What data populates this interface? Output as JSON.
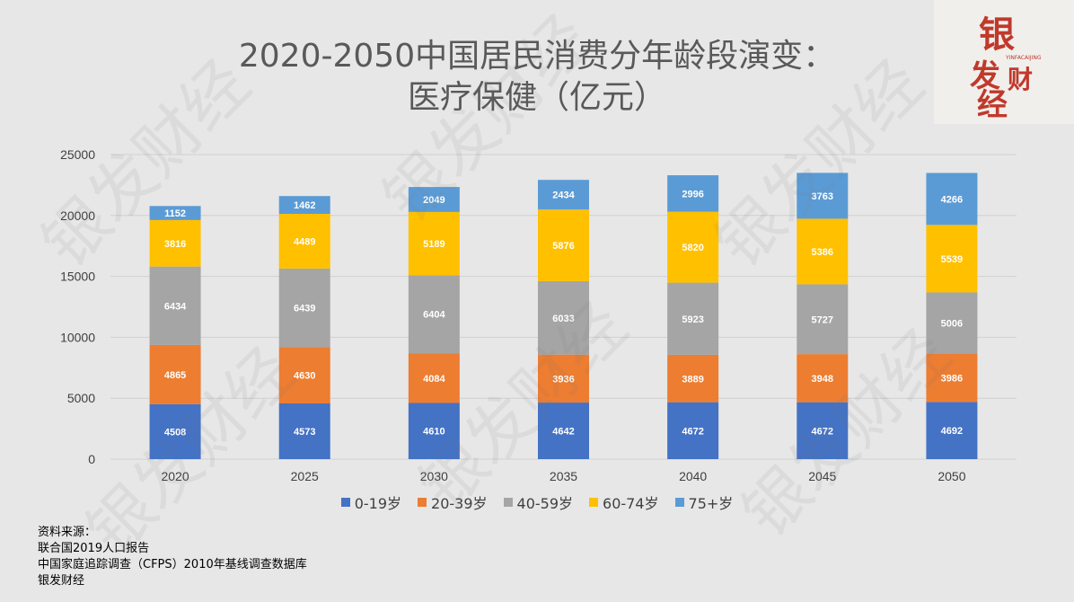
{
  "title_lines": [
    "2020-2050中国居民消费分年龄段演变：",
    "医疗保健（亿元）"
  ],
  "logo": {
    "chars": [
      "银",
      "发",
      "财",
      "经"
    ],
    "subtext": "YINFACAIJING",
    "color": "#c0392b"
  },
  "watermark_text": "银发财经",
  "source": {
    "heading": "资料来源：",
    "lines": [
      "联合国2019人口报告",
      "中国家庭追踪调查（CFPS）2010年基线调查数据库",
      "银发财经"
    ]
  },
  "chart_data": {
    "type": "bar",
    "stacked": true,
    "title": "2020-2050中国居民消费分年龄段演变：医疗保健（亿元）",
    "categories": [
      "2020",
      "2025",
      "2030",
      "2035",
      "2040",
      "2045",
      "2050"
    ],
    "series": [
      {
        "name": "0-19岁",
        "color": "#4472c4",
        "values": [
          4508,
          4573,
          4610,
          4642,
          4672,
          4672,
          4692
        ]
      },
      {
        "name": "20-39岁",
        "color": "#ed7d31",
        "values": [
          4865,
          4630,
          4084,
          3936,
          3889,
          3948,
          3986
        ]
      },
      {
        "name": "40-59岁",
        "color": "#a5a5a5",
        "values": [
          6434,
          6439,
          6404,
          6033,
          5923,
          5727,
          5006
        ]
      },
      {
        "name": "60-74岁",
        "color": "#ffc000",
        "values": [
          3816,
          4489,
          5189,
          5876,
          5820,
          5386,
          5539
        ]
      },
      {
        "name": "75+岁",
        "color": "#5b9bd5",
        "values": [
          1152,
          1462,
          2049,
          2434,
          2996,
          3763,
          4266
        ]
      }
    ],
    "ylim": [
      0,
      25000
    ],
    "yticks": [
      "0",
      "5000",
      "10000",
      "15000",
      "20000",
      "25000"
    ],
    "grid": true,
    "legend": "bottom",
    "data_labels": true
  }
}
